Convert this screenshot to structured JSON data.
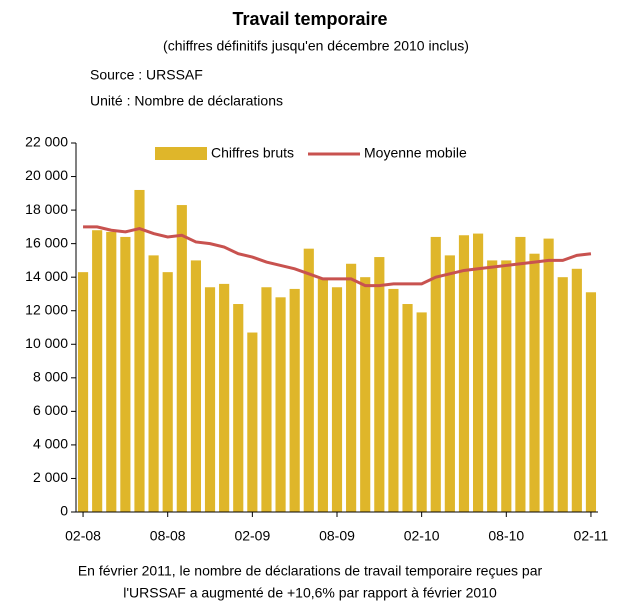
{
  "chart_data": {
    "type": "bar",
    "title": "Travail temporaire",
    "subtitle": "(chiffres définitifs jusqu'en décembre 2010 inclus)",
    "source": "Source : URSSAF",
    "unit": "Unité : Nombre de déclarations",
    "annotations": [
      "En février 2011, le nombre de déclarations de travail temporaire reçues par",
      "l'URSSAF a augmenté de +10,6% par rapport à février 2010"
    ],
    "categories": [
      "02-08",
      null,
      null,
      null,
      null,
      null,
      "08-08",
      null,
      null,
      null,
      null,
      null,
      "02-09",
      null,
      null,
      null,
      null,
      null,
      "08-09",
      null,
      null,
      null,
      null,
      null,
      "02-10",
      null,
      null,
      null,
      null,
      null,
      "08-10",
      null,
      null,
      null,
      null,
      null,
      "02-11"
    ],
    "series": [
      {
        "name": "Chiffres bruts",
        "color": "#dfb62a",
        "type": "bar",
        "values": [
          14300,
          16800,
          16700,
          16400,
          19200,
          15300,
          14300,
          18300,
          15000,
          13400,
          13600,
          12400,
          10700,
          13400,
          12800,
          13300,
          15700,
          13900,
          13400,
          14800,
          14000,
          15200,
          13300,
          12400,
          11900,
          16400,
          15300,
          16500,
          16600,
          15000,
          15000,
          16400,
          15400,
          16300,
          14000,
          14500,
          13100
        ]
      },
      {
        "name": "Moyenne mobile",
        "color": "#c8524f",
        "type": "line",
        "values": [
          17000,
          17000,
          16800,
          16700,
          16900,
          16600,
          16400,
          16500,
          16100,
          16000,
          15800,
          15400,
          15200,
          14900,
          14700,
          14500,
          14200,
          13900,
          13900,
          13900,
          13500,
          13500,
          13600,
          13600,
          13600,
          14000,
          14200,
          14400,
          14500,
          14600,
          14700,
          14800,
          14900,
          15000,
          15000,
          15300,
          15400
        ]
      }
    ],
    "ylim": [
      0,
      22000
    ],
    "yticks": [
      0,
      {
        "value": 2000,
        "label": "2 000"
      },
      {
        "value": 4000,
        "label": "4 000"
      },
      {
        "value": 6000,
        "label": "6 000"
      },
      {
        "value": 8000,
        "label": "8 000"
      },
      {
        "value": 10000,
        "label": "10 000"
      },
      {
        "value": 12000,
        "label": "12 000"
      },
      {
        "value": 14000,
        "label": "14 000"
      },
      {
        "value": 16000,
        "label": "16 000"
      },
      {
        "value": 18000,
        "label": "18 000"
      },
      {
        "value": 20000,
        "label": "20 000"
      },
      {
        "value": 22000,
        "label": "22 000"
      }
    ],
    "grid": false,
    "legend": "top"
  }
}
